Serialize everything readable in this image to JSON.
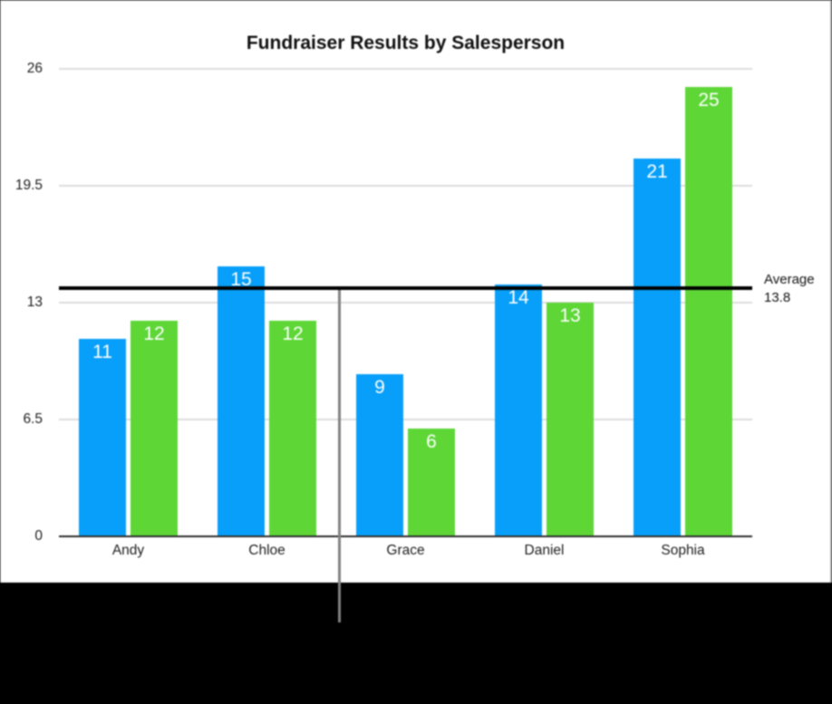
{
  "window": {
    "background_color": "#000000",
    "panel_color": "#ffffff",
    "panel_border_color": "#a3a3a3"
  },
  "chart_data": {
    "type": "bar",
    "title": "Fundraiser Results by Salesperson",
    "categories": [
      "Andy",
      "Chloe",
      "Grace",
      "Daniel",
      "Sophia"
    ],
    "series": [
      {
        "name": "series-blue",
        "color": "#079ff9",
        "values": [
          11,
          15,
          9,
          14,
          21
        ]
      },
      {
        "name": "series-green",
        "color": "#5dd636",
        "values": [
          12,
          12,
          6,
          13,
          25
        ]
      }
    ],
    "value_labels": [
      [
        "11",
        "15",
        "9",
        "14",
        "21"
      ],
      [
        "12",
        "12",
        "6",
        "13",
        "25"
      ]
    ],
    "xlabel": "",
    "ylabel": "",
    "ylim": [
      0,
      26
    ],
    "y_ticks": [
      {
        "value": 26,
        "label": "26"
      },
      {
        "value": 19.5,
        "label": "19.5"
      },
      {
        "value": 13,
        "label": "13"
      },
      {
        "value": 6.5,
        "label": "6.5"
      },
      {
        "value": 0,
        "label": "0"
      }
    ],
    "grid": true,
    "gridline_color": "#dcdcdc",
    "axis_line_color": "#2e2e2e",
    "legend": "none",
    "reference_line": {
      "value": 13.8,
      "color": "#000000",
      "label_line1": "Average",
      "label_line2": "13.8"
    }
  },
  "annotations": {
    "callout_line": {
      "color": "#828282",
      "description": "vertical gray pointer line from the average reference line down past the chart bottom"
    }
  }
}
